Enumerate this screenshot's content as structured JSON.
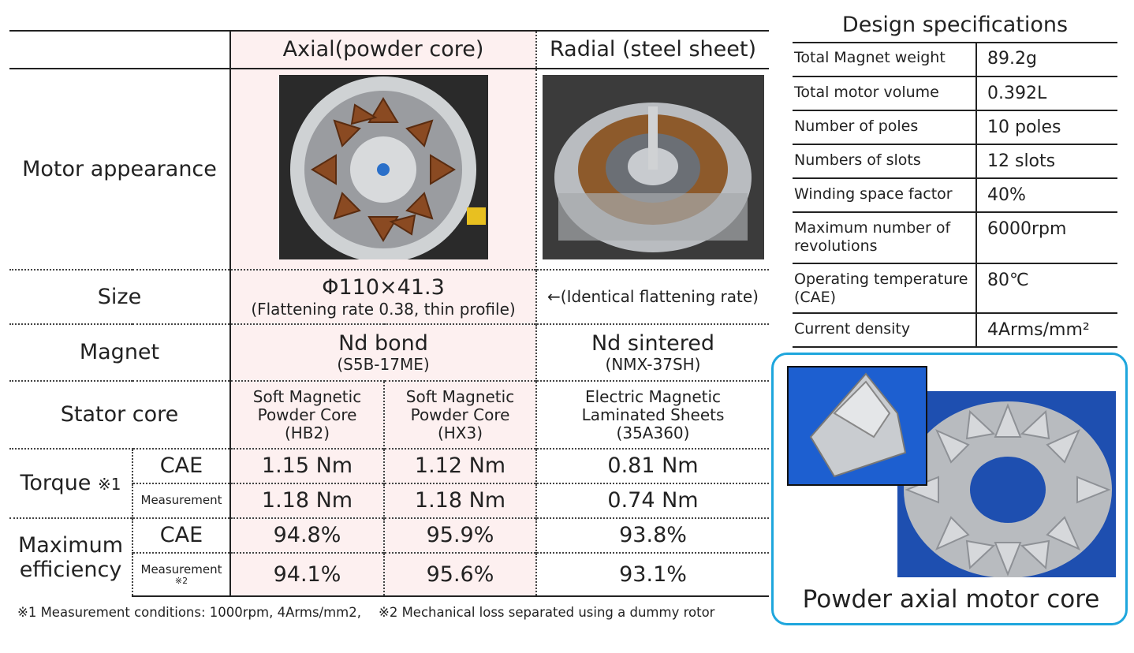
{
  "comparison": {
    "columns": [
      "Axial(powder core)",
      "Radial (steel sheet)"
    ],
    "appearance": {
      "label": "Motor appearance"
    },
    "size": {
      "label": "Size",
      "axial": "Φ110×41.3",
      "axial_note": "(Flattening rate 0.38, thin profile)",
      "radial": "←(Identical flattening rate)"
    },
    "magnet": {
      "label": "Magnet",
      "axial": "Nd bond",
      "axial_note": "(S5B-17ME)",
      "radial": "Nd sintered",
      "radial_note": "(NMX-37SH)"
    },
    "stator": {
      "label": "Stator core",
      "cells": [
        [
          "Soft Magnetic",
          "Powder Core",
          "(HB2)"
        ],
        [
          "Soft Magnetic",
          "Powder Core",
          "(HX3)"
        ],
        [
          "Electric Magnetic",
          "Laminated Sheets",
          "(35A360)"
        ]
      ]
    },
    "torque": {
      "label": "Torque",
      "note_mark": "※1",
      "rows": [
        {
          "label": "CAE",
          "values": [
            "1.15 Nm",
            "1.12 Nm",
            "0.81 Nm"
          ]
        },
        {
          "label": "Measurement",
          "values": [
            "1.18 Nm",
            "1.18 Nm",
            "0.74 Nm"
          ]
        }
      ]
    },
    "efficiency": {
      "label_lines": [
        "Maximum",
        "efficiency"
      ],
      "rows": [
        {
          "label": "CAE",
          "values": [
            "94.8%",
            "95.9%",
            "93.8%"
          ]
        },
        {
          "label": "Measurement",
          "note_mark": "※2",
          "values": [
            "94.1%",
            "95.6%",
            "93.1%"
          ]
        }
      ]
    },
    "footnotes": [
      "※1 Measurement conditions: 1000rpm, 4Arms/mm2,",
      "※2 Mechanical loss separated using a dummy rotor"
    ]
  },
  "specs": {
    "title": "Design specifications",
    "rows": [
      [
        "Total Magnet weight",
        "89.2g"
      ],
      [
        "Total motor volume",
        "0.392L"
      ],
      [
        "Number of poles",
        "10 poles"
      ],
      [
        "Numbers of slots",
        "12 slots"
      ],
      [
        "Winding space factor",
        "40%"
      ],
      [
        "Maximum number of revolutions",
        "6000rpm"
      ],
      [
        "Operating temperature (CAE)",
        "80℃"
      ],
      [
        "Current density",
        "4Arms/mm²"
      ]
    ]
  },
  "photo": {
    "caption": "Powder axial motor core"
  }
}
